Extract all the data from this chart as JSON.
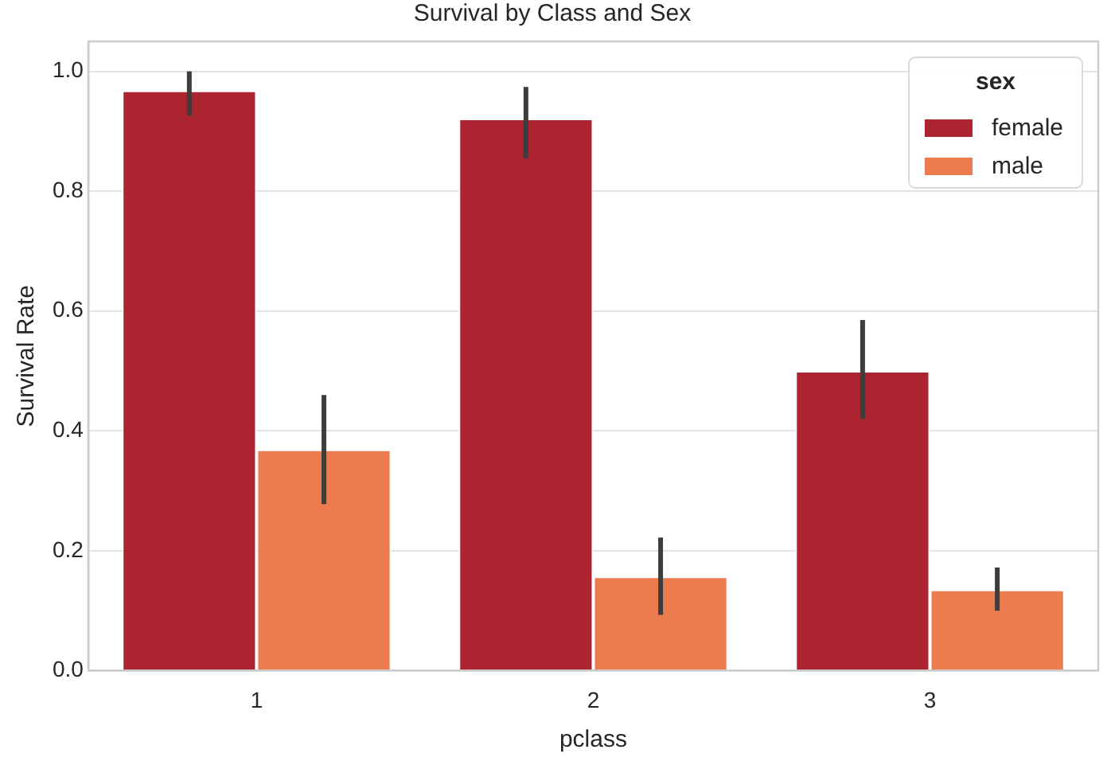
{
  "chart_data": {
    "type": "bar",
    "title": "Survival by Class and Sex",
    "xlabel": "pclass",
    "ylabel": "Survival Rate",
    "legend_title": "sex",
    "categories": [
      "1",
      "2",
      "3"
    ],
    "series": [
      {
        "name": "female",
        "color": "#ab2430",
        "values": [
          0.968,
          0.921,
          0.5
        ],
        "errors": [
          [
            0.926,
            1.0
          ],
          [
            0.855,
            0.974
          ],
          [
            0.42,
            0.585
          ]
        ]
      },
      {
        "name": "male",
        "color": "#ec7b4f",
        "values": [
          0.369,
          0.157,
          0.135
        ],
        "errors": [
          [
            0.278,
            0.46
          ],
          [
            0.093,
            0.222
          ],
          [
            0.1,
            0.172
          ]
        ]
      }
    ],
    "ylim": [
      0,
      1.05
    ],
    "yticks": [
      {
        "value": 0,
        "label": "0.0"
      },
      {
        "value": 0.2,
        "label": "0.2"
      },
      {
        "value": 0.4,
        "label": "0.4"
      },
      {
        "value": 0.6,
        "label": "0.6"
      },
      {
        "value": 0.8,
        "label": "0.8"
      },
      {
        "value": 1.0,
        "label": "1.0"
      }
    ],
    "grid": "y",
    "legend": "top right"
  }
}
